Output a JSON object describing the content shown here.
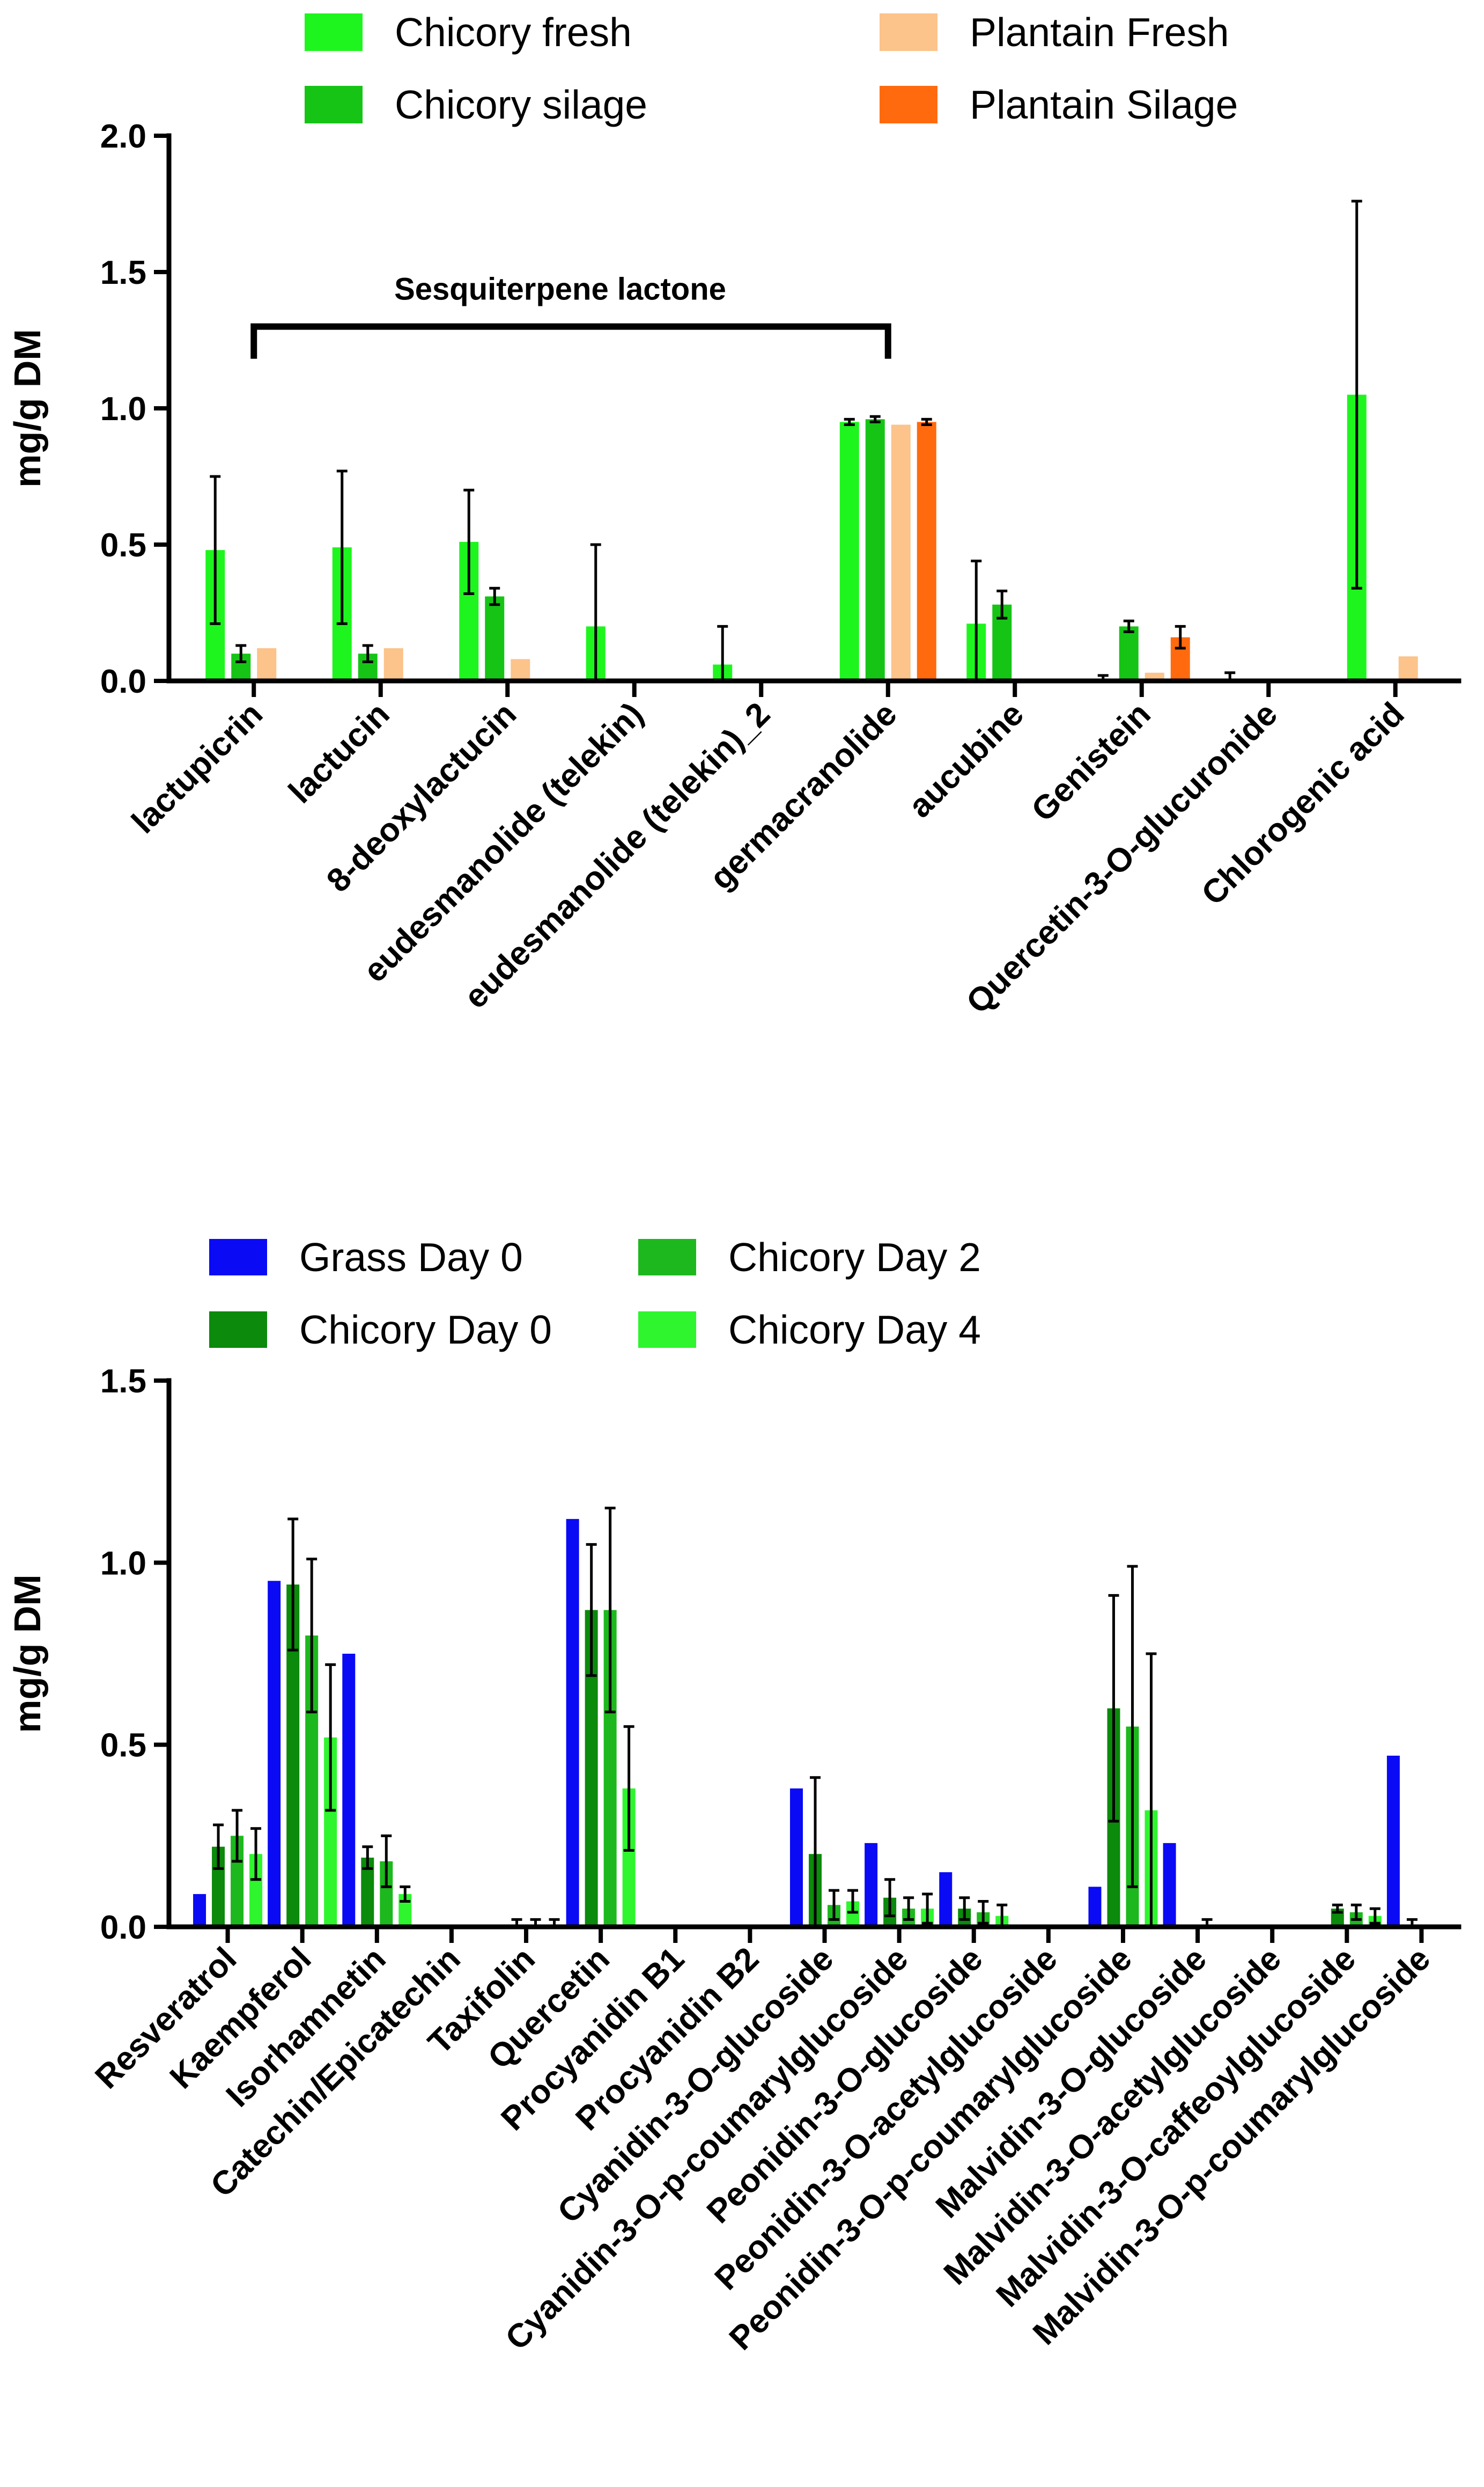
{
  "chart_data": [
    {
      "type": "bar",
      "ylabel": "mg/g DM",
      "ylim": [
        0,
        2.0
      ],
      "yticks": [
        "0.0",
        "0.5",
        "1.0",
        "1.5",
        "2.0"
      ],
      "categories": [
        "lactupicrin",
        "lactucin",
        "8-deoxylactucin",
        "eudesmanolide (telekin)",
        "eudesmanolide (telekin)_2",
        "germacranolide",
        "aucubine",
        "Genistein",
        "Quercetin-3-O-glucuronide",
        "Chlorogenic acid"
      ],
      "series": [
        {
          "name": "Chicory fresh",
          "color": "#1EF51E",
          "values": [
            0.48,
            0.49,
            0.51,
            0.2,
            0.06,
            0.95,
            0.21,
            0.0,
            0.0,
            1.05
          ],
          "errors": [
            0.27,
            0.28,
            0.19,
            0.3,
            0.14,
            0.01,
            0.23,
            0.02,
            0.03,
            0.71
          ]
        },
        {
          "name": "Chicory silage",
          "color": "#16C416",
          "values": [
            0.1,
            0.1,
            0.31,
            0.0,
            0.0,
            0.96,
            0.28,
            0.2,
            0.0,
            0.0
          ],
          "errors": [
            0.03,
            0.03,
            0.03,
            0,
            0,
            0.01,
            0.05,
            0.02,
            0,
            0
          ]
        },
        {
          "name": "Plantain Fresh",
          "color": "#FCC38A",
          "values": [
            0.12,
            0.12,
            0.08,
            0.0,
            0.0,
            0.94,
            0.0,
            0.03,
            0.0,
            0.09
          ],
          "errors": [
            0,
            0,
            0,
            0,
            0,
            0,
            0,
            0,
            0,
            0
          ]
        },
        {
          "name": "Plantain Silage",
          "color": "#FF6A0E",
          "values": [
            0.0,
            0.0,
            0.0,
            0.0,
            0.0,
            0.95,
            0.0,
            0.16,
            0.0,
            0.0
          ],
          "errors": [
            0,
            0,
            0,
            0,
            0,
            0.01,
            0,
            0.04,
            0,
            0
          ]
        }
      ],
      "annotation": {
        "text": "Sesquiterpene lactone",
        "from_category": 0,
        "to_category": 5,
        "level": 1.3
      }
    },
    {
      "type": "bar",
      "ylabel": "mg/g DM",
      "ylim": [
        0,
        1.5
      ],
      "yticks": [
        "0.0",
        "0.5",
        "1.0",
        "1.5"
      ],
      "categories": [
        "Resveratrol",
        "Kaempferol",
        "Isorhamnetin",
        "Catechin/Epicatechin",
        "Taxifolin",
        "Quercetin",
        "Procyanidin B1",
        "Procyanidin B2",
        "Cyanidin-3-O-glucoside",
        "Cyanidin-3-O-p-coumarylglucoside",
        "Peonidin-3-O-glucoside",
        "Peonidin-3-O-acetylglucoside",
        "Peonidin-3-O-p-coumarylglucoside",
        "Malvidin-3-O-glucoside",
        "Malvidin-3-O-acetylglucoside",
        "Malvidin-3-O-caffeoylglucoside",
        "Malvidin-3-O-p-coumarylglucoside"
      ],
      "series": [
        {
          "name": "Grass Day 0",
          "color": "#0A0AF5",
          "values": [
            0.09,
            0.95,
            0.75,
            0.0,
            0.0,
            1.12,
            0.0,
            0.0,
            0.38,
            0.23,
            0.15,
            0.0,
            0.11,
            0.23,
            0.0,
            0.0,
            0.47
          ],
          "errors": [
            0,
            0,
            0,
            0,
            0,
            0,
            0,
            0,
            0,
            0,
            0,
            0,
            0,
            0,
            0,
            0,
            0
          ]
        },
        {
          "name": "Chicory Day 0",
          "color": "#0B8A0B",
          "values": [
            0.22,
            0.94,
            0.19,
            0.0,
            0.0,
            0.87,
            0.0,
            0.0,
            0.2,
            0.08,
            0.05,
            0.0,
            0.6,
            0.0,
            0.0,
            0.05,
            0.0
          ],
          "errors": [
            0.06,
            0.18,
            0.03,
            0,
            0.02,
            0.18,
            0,
            0,
            0.21,
            0.05,
            0.03,
            0,
            0.31,
            0,
            0,
            0.01,
            0.02
          ]
        },
        {
          "name": "Chicory Day 2",
          "color": "#1DB81D",
          "values": [
            0.25,
            0.8,
            0.18,
            0.0,
            0.0,
            0.87,
            0.0,
            0.0,
            0.06,
            0.05,
            0.04,
            0.0,
            0.55,
            0.0,
            0.0,
            0.04,
            0.0
          ],
          "errors": [
            0.07,
            0.21,
            0.07,
            0,
            0.02,
            0.28,
            0,
            0,
            0.04,
            0.03,
            0.03,
            0,
            0.44,
            0.02,
            0,
            0.02,
            0
          ]
        },
        {
          "name": "Chicory Day 4",
          "color": "#2EF52E",
          "values": [
            0.2,
            0.52,
            0.09,
            0.0,
            0.0,
            0.38,
            0.0,
            0.0,
            0.07,
            0.05,
            0.03,
            0.0,
            0.32,
            0.0,
            0.0,
            0.03,
            0.0
          ],
          "errors": [
            0.07,
            0.2,
            0.02,
            0,
            0.02,
            0.17,
            0,
            0,
            0.03,
            0.04,
            0.03,
            0,
            0.43,
            0,
            0,
            0.02,
            0
          ]
        }
      ]
    }
  ]
}
